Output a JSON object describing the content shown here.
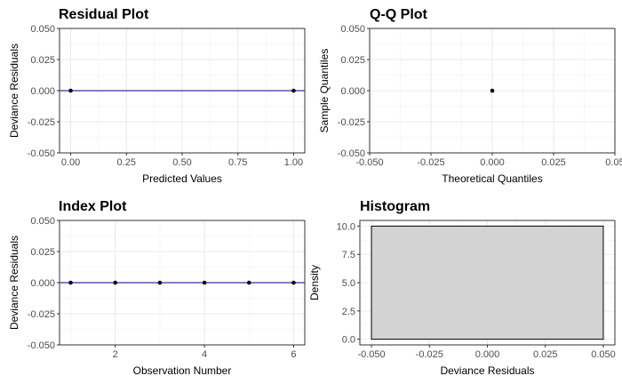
{
  "chart_data": [
    {
      "type": "scatter",
      "title": "Residual Plot",
      "xlabel": "Predicted Values",
      "ylabel": "Deviance Residuals",
      "xlim": [
        -0.05,
        1.05
      ],
      "ylim": [
        -0.05,
        0.05
      ],
      "xticks": [
        0,
        0.25,
        0.5,
        0.75,
        1
      ],
      "xtick_labels": [
        "0.00",
        "0.25",
        "0.50",
        "0.75",
        "1.00"
      ],
      "yticks": [
        -0.05,
        -0.025,
        0,
        0.025,
        0.05
      ],
      "ytick_labels": [
        "-0.050",
        "-0.025",
        "0.000",
        "0.025",
        "0.050"
      ],
      "points": [
        {
          "x": 0,
          "y": 0
        },
        {
          "x": 1,
          "y": 0
        }
      ],
      "hline": {
        "y": 0,
        "color": "#00008b"
      },
      "grid": true
    },
    {
      "type": "scatter",
      "title": "Q-Q Plot",
      "xlabel": "Theoretical Quantiles",
      "ylabel": "Sample Quantiles",
      "xlim": [
        -0.05,
        0.05
      ],
      "ylim": [
        -0.05,
        0.05
      ],
      "xticks": [
        -0.05,
        -0.025,
        0,
        0.025,
        0.05
      ],
      "xtick_labels": [
        "-0.050",
        "-0.025",
        "0.000",
        "0.025",
        "0.05"
      ],
      "yticks": [
        -0.05,
        -0.025,
        0,
        0.025,
        0.05
      ],
      "ytick_labels": [
        "-0.050",
        "-0.025",
        "0.000",
        "0.025",
        "0.050"
      ],
      "points": [
        {
          "x": 0,
          "y": 0
        }
      ],
      "grid": true
    },
    {
      "type": "scatter",
      "title": "Index Plot",
      "xlabel": "Observation Number",
      "ylabel": "Deviance Residuals",
      "xlim": [
        0.75,
        6.25
      ],
      "ylim": [
        -0.05,
        0.05
      ],
      "xticks": [
        2,
        4,
        6
      ],
      "xtick_labels": [
        "2",
        "4",
        "6"
      ],
      "yticks": [
        -0.05,
        -0.025,
        0,
        0.025,
        0.05
      ],
      "ytick_labels": [
        "-0.050",
        "-0.025",
        "0.000",
        "0.025",
        "0.050"
      ],
      "points": [
        {
          "x": 1,
          "y": 0
        },
        {
          "x": 2,
          "y": 0
        },
        {
          "x": 3,
          "y": 0
        },
        {
          "x": 4,
          "y": 0
        },
        {
          "x": 5,
          "y": 0
        },
        {
          "x": 6,
          "y": 0
        }
      ],
      "hline": {
        "y": 0,
        "color": "#00008b"
      },
      "grid": true
    },
    {
      "type": "bar",
      "title": "Histogram",
      "xlabel": "Deviance Residuals",
      "ylabel": "Density",
      "xlim": [
        -0.055,
        0.055
      ],
      "ylim": [
        -0.5,
        10.5
      ],
      "xticks": [
        -0.05,
        -0.025,
        0,
        0.025,
        0.05
      ],
      "xtick_labels": [
        "-0.050",
        "-0.025",
        "0.000",
        "0.025",
        "0.050"
      ],
      "yticks": [
        0,
        2.5,
        5,
        7.5,
        10
      ],
      "ytick_labels": [
        "0.0",
        "2.5",
        "5.0",
        "7.5",
        "10.0"
      ],
      "bins": [
        {
          "x0": -0.05,
          "x1": 0.05,
          "value": 10
        }
      ],
      "bar_fill": "#d3d3d3",
      "bar_stroke": "#000000",
      "grid": true
    }
  ]
}
